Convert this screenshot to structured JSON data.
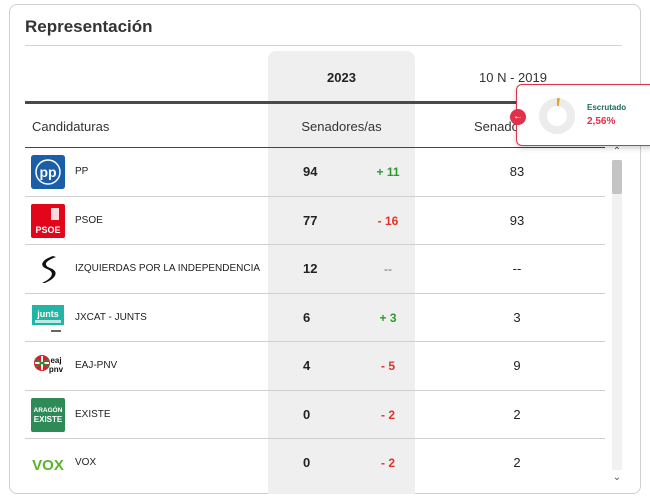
{
  "title": "Representación",
  "header": {
    "year_current": "2023",
    "year_previous": "10 N - 2019",
    "col_candidaturas": "Candidaturas",
    "col_senadores": "Senadores/as",
    "col_senadores_prev": "Senado"
  },
  "rows": [
    {
      "name": "PP",
      "logo_text": "pp",
      "logo_bg": "#1a5ea8",
      "seats": "94",
      "diff": "+ 11",
      "diff_type": "pos",
      "seats_prev": "83"
    },
    {
      "name": "PSOE",
      "logo_text": "PSOE",
      "logo_bg": "#e3061b",
      "seats": "77",
      "diff": "- 16",
      "diff_type": "neg",
      "seats_prev": "93"
    },
    {
      "name": "IZQUIERDAS POR LA INDEPENDENCIA",
      "logo_text": "S",
      "logo_bg": "#111111",
      "seats": "12",
      "diff": "--",
      "diff_type": "neutral",
      "seats_prev": "--"
    },
    {
      "name": "JxCAT - JUNTS",
      "logo_text": "junts",
      "logo_bg": "#22b5a5",
      "seats": "6",
      "diff": "+ 3",
      "diff_type": "pos",
      "seats_prev": "3"
    },
    {
      "name": "EAJ-PNV",
      "logo_text": "eaj pnv",
      "logo_bg": "#ffffff",
      "seats": "4",
      "diff": "- 5",
      "diff_type": "neg",
      "seats_prev": "9"
    },
    {
      "name": "EXISTE",
      "logo_text": "ARAGÓN EXISTE",
      "logo_bg": "#2e8b57",
      "seats": "0",
      "diff": "- 2",
      "diff_type": "neg",
      "seats_prev": "2"
    },
    {
      "name": "VOX",
      "logo_text": "VOX",
      "logo_bg": "#ffffff",
      "seats": "0",
      "diff": "- 2",
      "diff_type": "neg",
      "seats_prev": "2"
    }
  ],
  "popup": {
    "label": "Escrutado",
    "value": "2,56%",
    "fraction": 0.0256
  },
  "colors": {
    "accent": "#e0304a",
    "positive": "#2a9d2a",
    "negative": "#e0332a"
  }
}
